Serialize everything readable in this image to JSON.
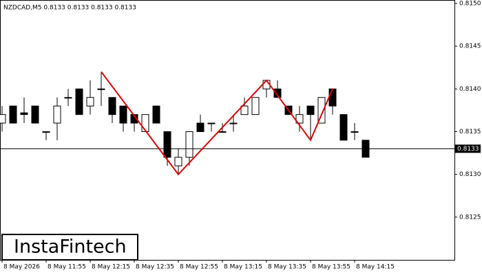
{
  "chart_data": {
    "type": "candlestick",
    "title": "NZDCAD,M5  0.8133 0.8133 0.8133 0.8133",
    "logo": "InstaFintech",
    "categories": [
      "8 May 2026",
      null,
      null,
      null,
      "8 May 11:55",
      null,
      null,
      null,
      "8 May 12:15",
      null,
      null,
      null,
      "8 May 12:35",
      null,
      null,
      null,
      "8 May 12:55",
      null,
      null,
      null,
      "8 May 13:15",
      null,
      null,
      null,
      "8 May 13:35",
      null,
      null,
      null,
      "8 May 13:55",
      null,
      null,
      null,
      "8 May 14:15",
      null
    ],
    "open": [
      0.8136,
      0.8138,
      0.81372,
      0.8138,
      0.8135,
      0.8136,
      0.8139,
      0.814,
      0.8138,
      0.814,
      0.8139,
      0.8138,
      0.8137,
      0.8135,
      0.8138,
      0.8135,
      0.8131,
      0.8132,
      0.8136,
      0.8136,
      0.8135,
      0.8136,
      0.8137,
      0.8137,
      0.814,
      0.814,
      0.8138,
      0.8136,
      0.8138,
      0.8136,
      0.814,
      0.8137,
      0.8135,
      0.8134
    ],
    "high": [
      0.8138,
      0.8138,
      0.8139,
      0.8138,
      0.8135,
      0.8139,
      0.814,
      0.814,
      0.8141,
      0.8142,
      0.8139,
      0.8138,
      0.8137,
      0.8137,
      0.8138,
      0.8135,
      0.8133,
      0.8135,
      0.8137,
      0.8136,
      0.8136,
      0.8137,
      0.8139,
      0.8139,
      0.8141,
      0.8141,
      0.8138,
      0.8138,
      0.8138,
      0.8139,
      0.814,
      0.8137,
      0.8136,
      0.8134
    ],
    "low": [
      0.8135,
      0.8136,
      0.8136,
      0.8136,
      0.8134,
      0.8134,
      0.8138,
      0.8137,
      0.8137,
      0.8138,
      0.8136,
      0.8135,
      0.8135,
      0.8135,
      0.8136,
      0.8131,
      0.813,
      0.8131,
      0.8135,
      0.8135,
      0.8135,
      0.8135,
      0.8137,
      0.8137,
      0.8139,
      0.8139,
      0.8137,
      0.8135,
      0.8134,
      0.8136,
      0.8137,
      0.8134,
      0.8134,
      0.8132
    ],
    "close": [
      0.8137,
      0.8136,
      0.8137,
      0.8136,
      0.8135,
      0.8138,
      0.8139,
      0.8137,
      0.8139,
      0.814,
      0.8137,
      0.8136,
      0.8136,
      0.8137,
      0.8136,
      0.8132,
      0.8132,
      0.8135,
      0.8135,
      0.8136,
      0.8135,
      0.8136,
      0.8138,
      0.8139,
      0.8141,
      0.8139,
      0.8137,
      0.8137,
      0.8137,
      0.8139,
      0.8138,
      0.8134,
      0.8135,
      0.8132
    ],
    "bull_color": "#ffffff",
    "bear_color": "#000000",
    "current_price": {
      "value": 0.8133,
      "label": "0.8133"
    },
    "pattern": {
      "color": "#e00000",
      "x": [
        9,
        16,
        24,
        28,
        30
      ],
      "values": [
        0.8142,
        0.813,
        0.8141,
        0.8134,
        0.814
      ]
    },
    "ylim": [
      0.812,
      0.81504
    ],
    "yticks": [
      {
        "value": 0.8125,
        "label": "0.8125"
      },
      {
        "value": 0.813,
        "label": "0.8130"
      },
      {
        "value": 0.8135,
        "label": "0.8135"
      },
      {
        "value": 0.814,
        "label": "0.8140"
      },
      {
        "value": 0.8145,
        "label": "0.8145"
      },
      {
        "value": 0.815,
        "label": "0.8150"
      }
    ]
  }
}
